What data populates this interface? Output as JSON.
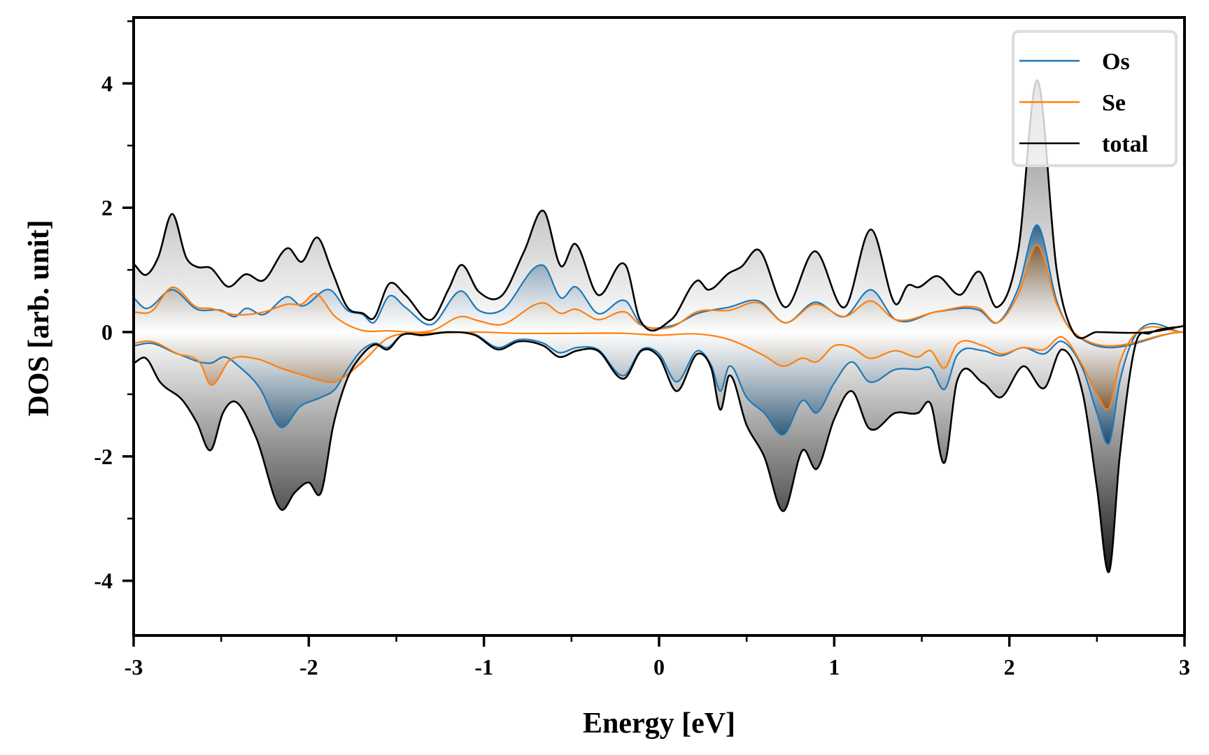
{
  "chart_data": {
    "type": "area",
    "title": "",
    "xlabel": "Energy [eV]",
    "ylabel": "DOS [arb. unit]",
    "xlim": [
      -3,
      3
    ],
    "ylim": [
      -4.88,
      5.06
    ],
    "xticks": [
      -3,
      -2,
      -1,
      0,
      1,
      2,
      3
    ],
    "xtick_labels": [
      "-3",
      "-2",
      "-1",
      "0",
      "1",
      "2",
      "3"
    ],
    "xminor": [
      -2.5,
      -1.5,
      -0.5,
      0.5,
      1.5,
      2.5
    ],
    "yticks": [
      -4,
      -2,
      0,
      2,
      4
    ],
    "ytick_labels": [
      "-4",
      "-2",
      "0",
      "2",
      "4"
    ],
    "yminor": [
      -3,
      -1,
      1,
      3,
      5
    ],
    "grid": false,
    "legend": {
      "placement": "top-right",
      "entries": [
        {
          "label": "Os",
          "color": "#1f77b4"
        },
        {
          "label": "Se",
          "color": "#ff7f0e"
        },
        {
          "label": "total",
          "color": "#000000"
        }
      ]
    },
    "series": [
      {
        "name": "total",
        "spin": "up",
        "color": "#000000",
        "x": [
          -3.0,
          -2.93,
          -2.86,
          -2.78,
          -2.7,
          -2.64,
          -2.56,
          -2.46,
          -2.36,
          -2.26,
          -2.12,
          -2.04,
          -1.95,
          -1.87,
          -1.78,
          -1.69,
          -1.63,
          -1.54,
          -1.45,
          -1.3,
          -1.2,
          -1.13,
          -1.03,
          -0.9,
          -0.77,
          -0.66,
          -0.56,
          -0.48,
          -0.35,
          -0.19,
          -0.11,
          0.07,
          0.22,
          0.28,
          0.4,
          0.47,
          0.57,
          0.72,
          0.89,
          1.06,
          1.21,
          1.35,
          1.42,
          1.48,
          1.59,
          1.72,
          1.83,
          1.93,
          2.05,
          2.16,
          2.27,
          2.36,
          2.5,
          2.8,
          3.0
        ],
        "y": [
          1.1,
          0.92,
          1.2,
          1.9,
          1.2,
          1.05,
          1.03,
          0.73,
          0.93,
          0.83,
          1.35,
          1.13,
          1.52,
          1.0,
          0.4,
          0.3,
          0.22,
          0.78,
          0.6,
          0.2,
          0.7,
          1.08,
          0.65,
          0.58,
          1.3,
          1.95,
          1.06,
          1.42,
          0.6,
          1.07,
          0.2,
          0.2,
          0.83,
          0.68,
          0.95,
          1.05,
          1.32,
          0.4,
          1.3,
          0.4,
          1.65,
          0.45,
          0.75,
          0.72,
          0.9,
          0.6,
          0.97,
          0.4,
          1.3,
          4.05,
          1.0,
          0.02,
          0.0,
          0.0,
          0.1
        ]
      },
      {
        "name": "Os",
        "spin": "up",
        "color": "#1f77b4",
        "x": [
          -3.0,
          -2.93,
          -2.78,
          -2.64,
          -2.5,
          -2.42,
          -2.36,
          -2.26,
          -2.12,
          -2.04,
          -1.88,
          -1.78,
          -1.69,
          -1.63,
          -1.54,
          -1.45,
          -1.3,
          -1.13,
          -1.03,
          -0.9,
          -0.66,
          -0.56,
          -0.48,
          -0.35,
          -0.19,
          -0.11,
          0.07,
          0.22,
          0.4,
          0.57,
          0.72,
          0.89,
          1.06,
          1.21,
          1.35,
          1.59,
          1.83,
          1.93,
          2.05,
          2.16,
          2.27,
          2.36,
          3.0
        ],
        "y": [
          0.55,
          0.38,
          0.68,
          0.37,
          0.35,
          0.25,
          0.38,
          0.28,
          0.57,
          0.42,
          0.68,
          0.35,
          0.28,
          0.15,
          0.58,
          0.4,
          0.12,
          0.66,
          0.35,
          0.35,
          1.07,
          0.55,
          0.73,
          0.3,
          0.5,
          0.15,
          0.1,
          0.3,
          0.4,
          0.5,
          0.15,
          0.48,
          0.25,
          0.68,
          0.2,
          0.33,
          0.35,
          0.15,
          0.7,
          1.72,
          0.5,
          0.01,
          0.0
        ]
      },
      {
        "name": "Se",
        "spin": "up",
        "color": "#ff7f0e",
        "x": [
          -3.0,
          -2.9,
          -2.78,
          -2.64,
          -2.56,
          -2.42,
          -2.26,
          -2.12,
          -2.04,
          -1.96,
          -1.85,
          -1.7,
          -1.55,
          -1.3,
          -1.13,
          -1.03,
          -0.9,
          -0.66,
          -0.56,
          -0.48,
          -0.35,
          -0.19,
          -0.11,
          0.07,
          0.22,
          0.4,
          0.57,
          0.72,
          0.89,
          1.06,
          1.21,
          1.35,
          1.59,
          1.83,
          1.93,
          2.05,
          2.16,
          2.27,
          2.36,
          3.0
        ],
        "y": [
          0.32,
          0.33,
          0.72,
          0.4,
          0.38,
          0.28,
          0.32,
          0.45,
          0.45,
          0.62,
          0.25,
          0.03,
          0.02,
          0.02,
          0.25,
          0.18,
          0.12,
          0.47,
          0.3,
          0.37,
          0.2,
          0.32,
          0.12,
          0.08,
          0.33,
          0.35,
          0.47,
          0.15,
          0.45,
          0.25,
          0.5,
          0.2,
          0.33,
          0.38,
          0.15,
          0.6,
          1.4,
          0.45,
          0.01,
          0.0
        ]
      },
      {
        "name": "total",
        "spin": "down",
        "color": "#000000",
        "x": [
          -3.0,
          -2.93,
          -2.85,
          -2.72,
          -2.64,
          -2.56,
          -2.49,
          -2.42,
          -2.3,
          -2.16,
          -2.08,
          -2.0,
          -1.93,
          -1.86,
          -1.78,
          -1.7,
          -1.62,
          -1.55,
          -1.47,
          -1.35,
          -1.2,
          -1.05,
          -0.92,
          -0.8,
          -0.66,
          -0.57,
          -0.47,
          -0.35,
          -0.2,
          -0.1,
          0.0,
          0.1,
          0.22,
          0.3,
          0.35,
          0.4,
          0.5,
          0.6,
          0.71,
          0.82,
          0.9,
          1.0,
          1.1,
          1.2,
          1.35,
          1.48,
          1.55,
          1.63,
          1.7,
          1.85,
          1.95,
          2.08,
          2.2,
          2.3,
          2.42,
          2.5,
          2.57,
          2.63,
          2.72,
          2.8,
          3.0
        ],
        "y": [
          -0.5,
          -0.42,
          -0.8,
          -1.1,
          -1.45,
          -1.9,
          -1.3,
          -1.12,
          -1.7,
          -2.85,
          -2.58,
          -2.42,
          -2.58,
          -1.5,
          -0.75,
          -0.38,
          -0.2,
          -0.28,
          -0.05,
          -0.05,
          0.0,
          -0.05,
          -0.28,
          -0.15,
          -0.22,
          -0.4,
          -0.3,
          -0.3,
          -0.75,
          -0.3,
          -0.4,
          -0.95,
          -0.35,
          -0.6,
          -1.25,
          -0.7,
          -1.5,
          -2.0,
          -2.88,
          -1.9,
          -2.2,
          -1.4,
          -0.95,
          -1.55,
          -1.3,
          -1.3,
          -1.15,
          -2.1,
          -0.8,
          -0.82,
          -1.05,
          -0.55,
          -0.9,
          -0.28,
          -1.0,
          -2.5,
          -3.85,
          -2.0,
          -0.2,
          -0.02,
          0.1
        ]
      },
      {
        "name": "Os",
        "spin": "down",
        "color": "#1f77b4",
        "x": [
          -3.0,
          -2.9,
          -2.75,
          -2.56,
          -2.48,
          -2.4,
          -2.28,
          -2.16,
          -2.05,
          -1.93,
          -1.85,
          -1.78,
          -1.7,
          -1.62,
          -1.55,
          -1.47,
          -1.35,
          -1.2,
          -1.05,
          -0.92,
          -0.8,
          -0.66,
          -0.57,
          -0.47,
          -0.35,
          -0.2,
          -0.1,
          0.0,
          0.1,
          0.22,
          0.3,
          0.35,
          0.4,
          0.5,
          0.6,
          0.71,
          0.82,
          0.9,
          1.0,
          1.1,
          1.2,
          1.35,
          1.48,
          1.55,
          1.63,
          1.7,
          1.85,
          1.95,
          2.08,
          2.2,
          2.3,
          2.42,
          2.5,
          2.57,
          2.63,
          2.72,
          3.0
        ],
        "y": [
          -0.22,
          -0.18,
          -0.35,
          -0.5,
          -0.4,
          -0.55,
          -0.9,
          -1.53,
          -1.2,
          -1.05,
          -0.92,
          -0.6,
          -0.3,
          -0.18,
          -0.25,
          -0.05,
          -0.03,
          0.0,
          -0.04,
          -0.25,
          -0.12,
          -0.18,
          -0.33,
          -0.25,
          -0.28,
          -0.7,
          -0.28,
          -0.35,
          -0.8,
          -0.3,
          -0.55,
          -0.95,
          -0.55,
          -1.05,
          -1.3,
          -1.65,
          -1.1,
          -1.3,
          -0.82,
          -0.48,
          -0.8,
          -0.6,
          -0.6,
          -0.58,
          -0.92,
          -0.38,
          -0.3,
          -0.38,
          -0.25,
          -0.35,
          -0.15,
          -0.6,
          -1.3,
          -1.78,
          -0.8,
          -0.05,
          0.0
        ]
      },
      {
        "name": "Se",
        "spin": "down",
        "color": "#ff7f0e",
        "x": [
          -3.0,
          -2.9,
          -2.75,
          -2.62,
          -2.56,
          -2.45,
          -2.3,
          -2.16,
          -2.05,
          -1.93,
          -1.85,
          -1.7,
          -1.55,
          -1.35,
          -1.2,
          -1.05,
          -0.8,
          -0.5,
          -0.2,
          0.0,
          0.22,
          0.4,
          0.6,
          0.71,
          0.82,
          0.9,
          1.0,
          1.1,
          1.2,
          1.35,
          1.48,
          1.55,
          1.63,
          1.7,
          1.85,
          1.95,
          2.08,
          2.2,
          2.3,
          2.42,
          2.5,
          2.57,
          2.63,
          2.72,
          3.0
        ],
        "y": [
          -0.18,
          -0.15,
          -0.35,
          -0.5,
          -0.85,
          -0.45,
          -0.43,
          -0.58,
          -0.68,
          -0.78,
          -0.8,
          -0.5,
          -0.1,
          -0.02,
          -0.01,
          0.0,
          -0.02,
          -0.02,
          -0.02,
          -0.05,
          -0.03,
          -0.12,
          -0.38,
          -0.55,
          -0.42,
          -0.48,
          -0.22,
          -0.25,
          -0.42,
          -0.3,
          -0.4,
          -0.3,
          -0.58,
          -0.2,
          -0.22,
          -0.35,
          -0.25,
          -0.28,
          -0.08,
          -0.55,
          -1.0,
          -1.22,
          -0.5,
          -0.03,
          0.0
        ]
      }
    ]
  }
}
